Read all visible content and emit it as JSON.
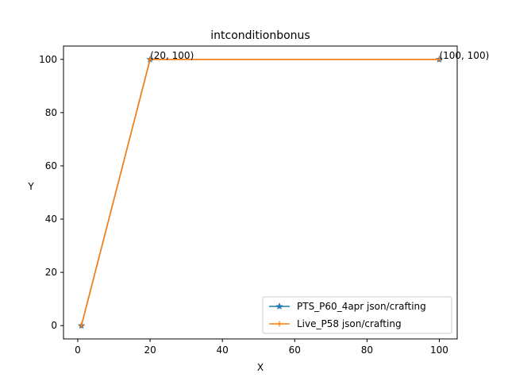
{
  "chart_data": {
    "type": "line",
    "title": "intconditionbonus",
    "xlabel": "X",
    "ylabel": "Y",
    "xlim": [
      -3.95,
      104.95
    ],
    "ylim": [
      -5,
      105
    ],
    "xticks": [
      0,
      20,
      40,
      60,
      80,
      100
    ],
    "yticks": [
      0,
      20,
      40,
      60,
      80,
      100
    ],
    "grid": false,
    "legend_position": "lower right",
    "series": [
      {
        "name": "PTS_P60_4apr json/crafting",
        "color": "#1f77b4",
        "marker": "star",
        "x": [
          1,
          20,
          100
        ],
        "y": [
          0,
          100,
          100
        ]
      },
      {
        "name": "Live_P58 json/crafting",
        "color": "#ff7f0e",
        "marker": "plus",
        "x": [
          1,
          20,
          100
        ],
        "y": [
          0,
          100,
          100
        ]
      }
    ],
    "annotations": [
      {
        "text": "(20, 100)",
        "x": 20,
        "y": 100
      },
      {
        "text": "(100, 100)",
        "x": 100,
        "y": 100
      }
    ]
  }
}
